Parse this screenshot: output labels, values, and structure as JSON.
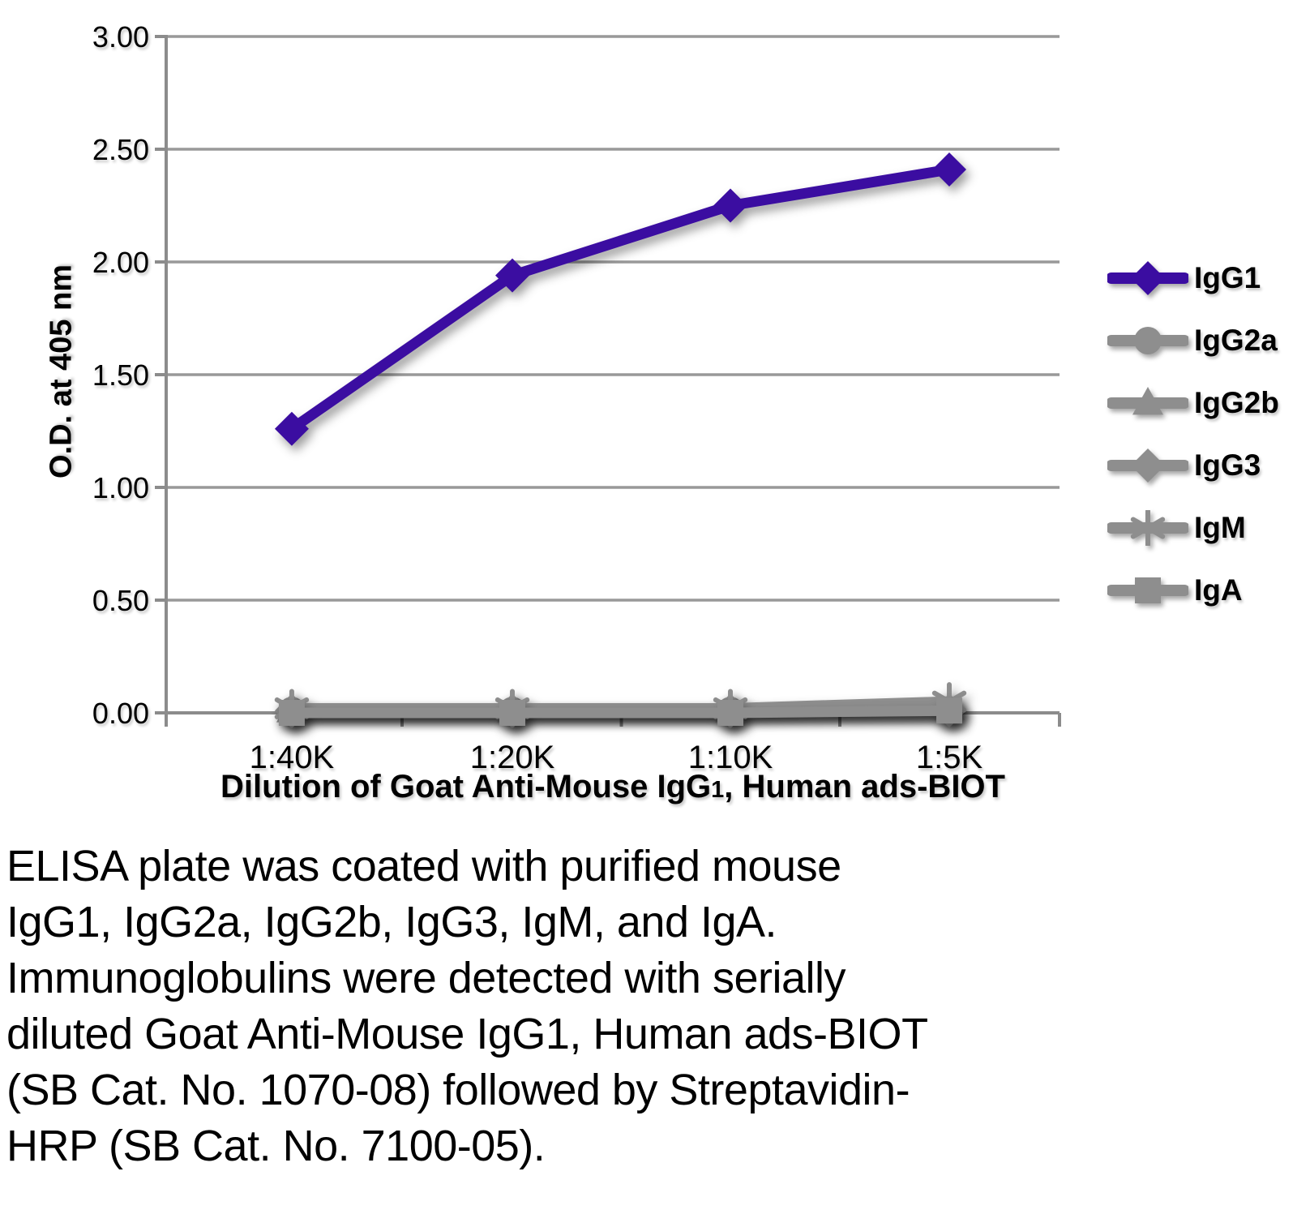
{
  "chart_data": {
    "type": "line",
    "title": "",
    "categories": [
      "1:40K",
      "1:20K",
      "1:10K",
      "1:5K"
    ],
    "series": [
      {
        "name": "IgG1",
        "color": "#3b0da1",
        "marker": "diamond",
        "values": [
          1.26,
          1.94,
          2.25,
          2.41
        ]
      },
      {
        "name": "IgG2a",
        "color": "#8e8e8e",
        "marker": "circle",
        "values": [
          0.01,
          0.01,
          0.01,
          0.01
        ]
      },
      {
        "name": "IgG2b",
        "color": "#8e8e8e",
        "marker": "triangle-up",
        "values": [
          0.01,
          0.01,
          0.01,
          0.02
        ]
      },
      {
        "name": "IgG3",
        "color": "#8e8e8e",
        "marker": "diamond",
        "values": [
          0.01,
          0.01,
          0.01,
          0.01
        ]
      },
      {
        "name": "IgM",
        "color": "#8e8e8e",
        "marker": "asterisk",
        "values": [
          0.02,
          0.02,
          0.02,
          0.05
        ]
      },
      {
        "name": "IgA",
        "color": "#8e8e8e",
        "marker": "square",
        "values": [
          0.0,
          0.0,
          0.0,
          0.01
        ]
      }
    ],
    "ylabel": "O.D. at 405 nm",
    "xlabel": "Dilution of Goat Anti-Mouse IgG1, Human ads-BIOT",
    "x_title_parts": {
      "pre": "Dilution of Goat Anti-Mouse IgG",
      "sub": "1",
      "post": ", Human ads-BIOT"
    },
    "ylim": [
      0,
      3
    ],
    "y_ticks": [
      {
        "value": 0.0,
        "label": "0.00"
      },
      {
        "value": 0.5,
        "label": "0.50"
      },
      {
        "value": 1.0,
        "label": "1.00"
      },
      {
        "value": 1.5,
        "label": "1.50"
      },
      {
        "value": 2.0,
        "label": "2.00"
      },
      {
        "value": 2.5,
        "label": "2.50"
      },
      {
        "value": 3.0,
        "label": "3.00"
      }
    ],
    "grid": "horizontal",
    "legend_position": "right"
  },
  "colors": {
    "gridline": "#999999",
    "axis": "#8c8c8c",
    "text": "#000000"
  },
  "caption": {
    "lines": [
      "ELISA plate was coated with purified mouse",
      "IgG1, IgG2a, IgG2b, IgG3, IgM, and IgA.",
      "Immunoglobulins were detected with serially",
      "diluted Goat Anti-Mouse IgG1, Human ads-BIOT",
      "(SB Cat. No. 1070-08) followed by Streptavidin-",
      "HRP (SB Cat. No. 7100-05)."
    ]
  }
}
